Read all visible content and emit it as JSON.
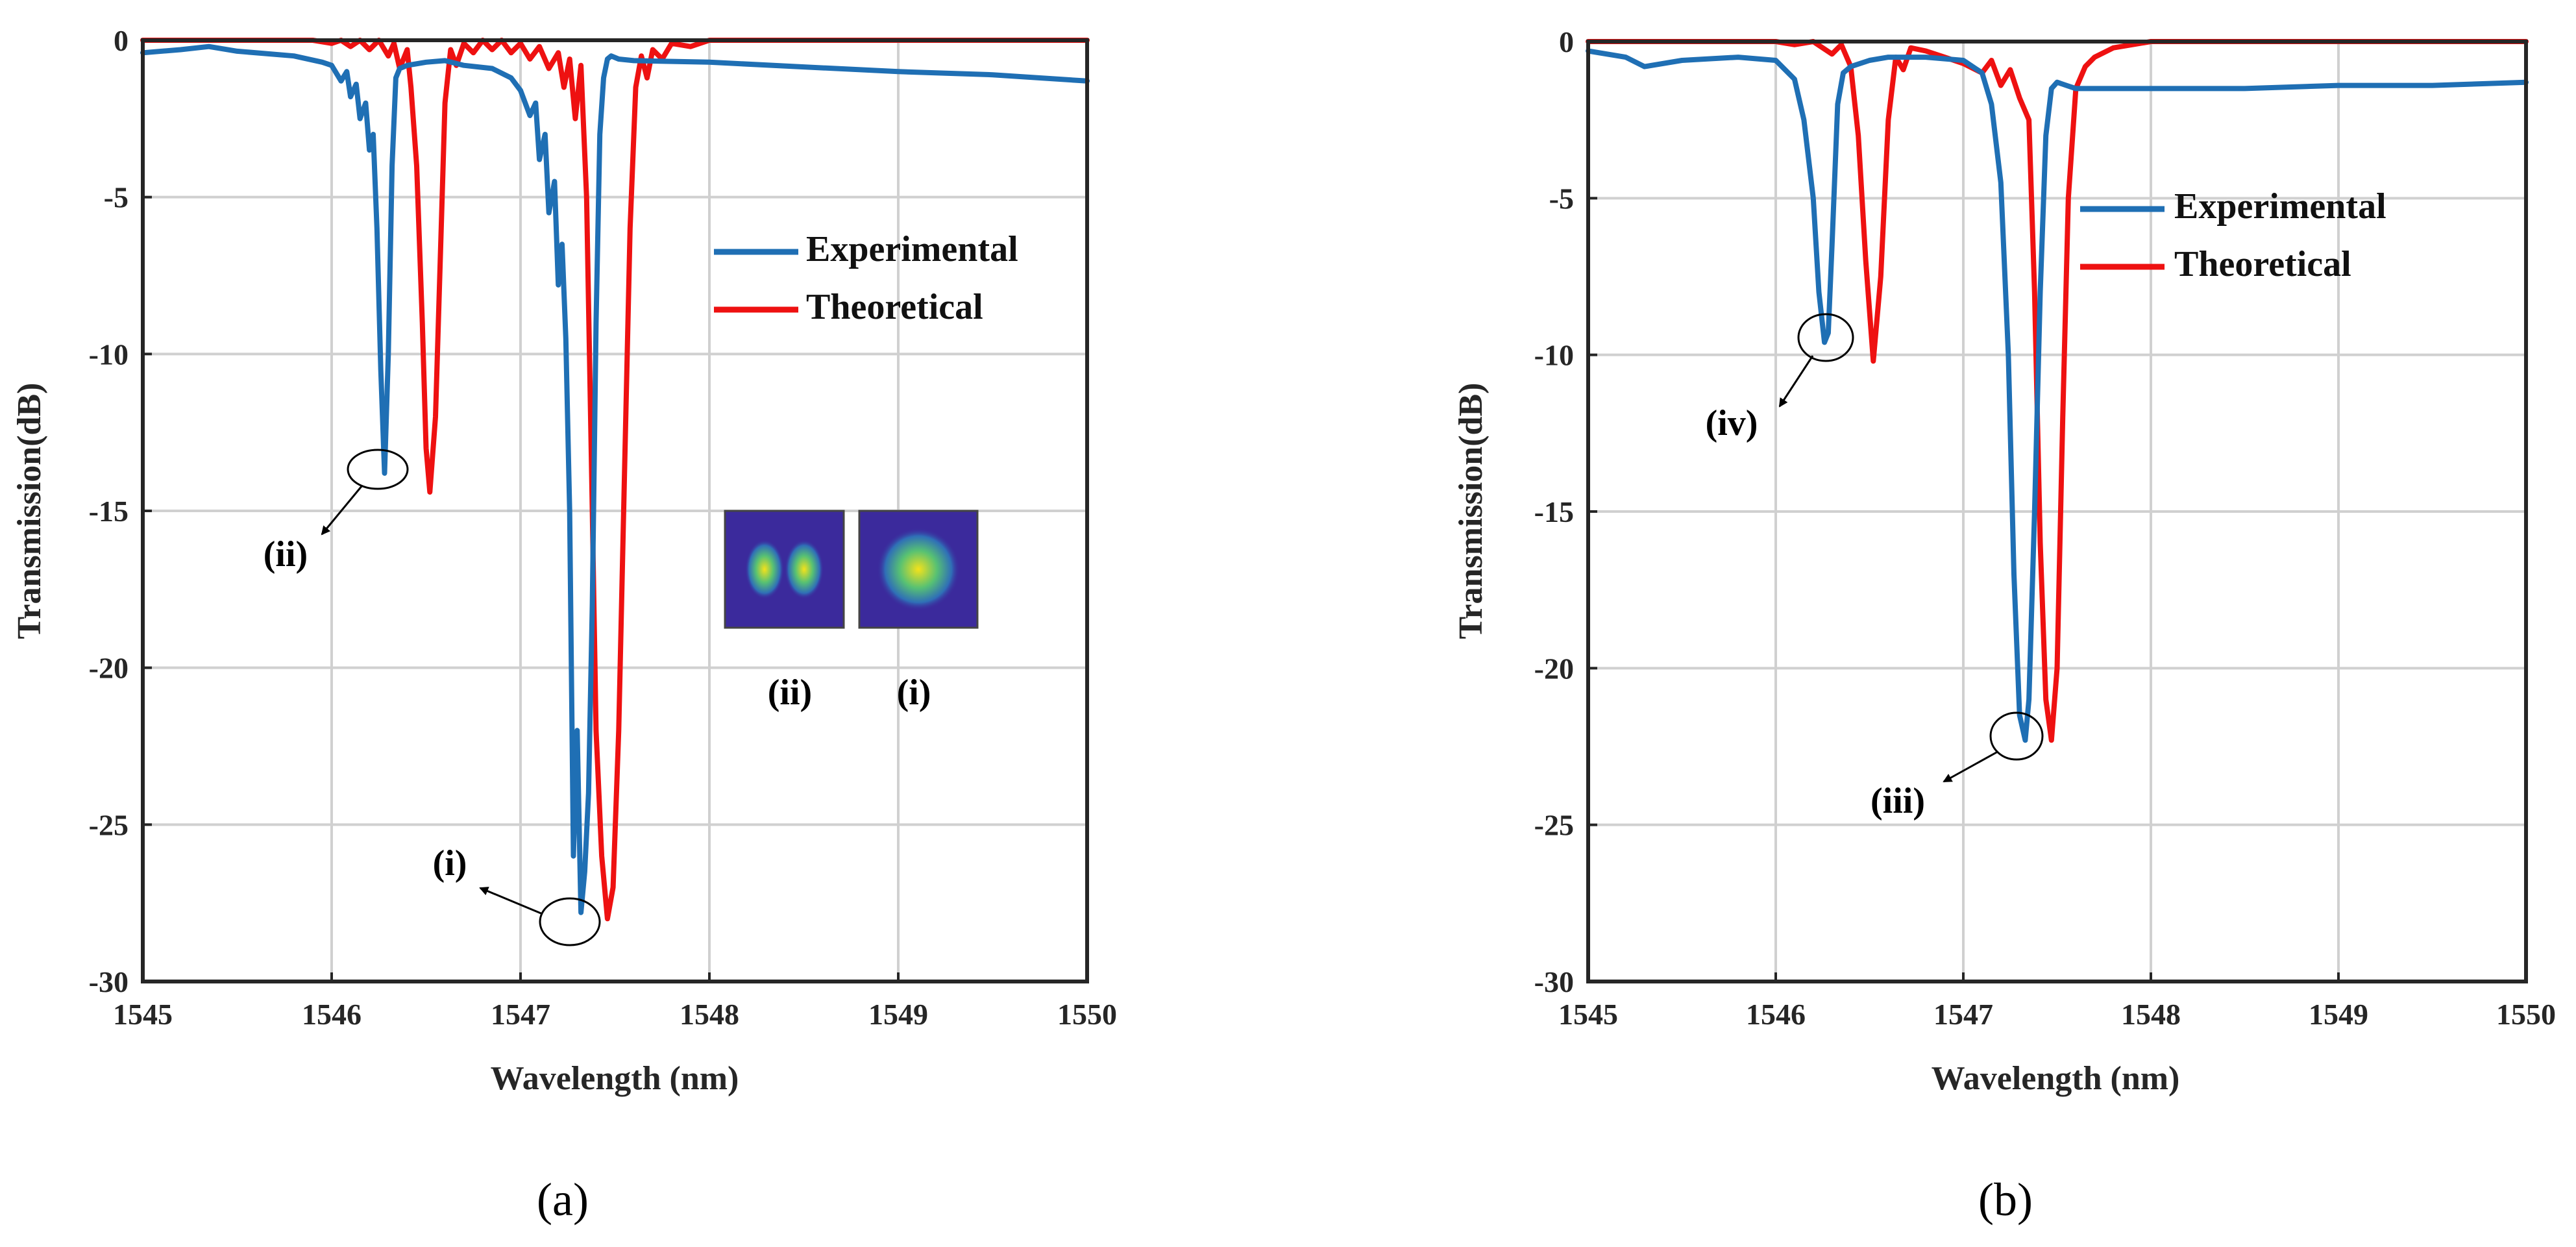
{
  "chart_data": [
    {
      "type": "line",
      "panel_label": "(a)",
      "xlabel": "Wavelength (nm)",
      "ylabel": "Transmission(dB)",
      "xlim": [
        1545,
        1550
      ],
      "ylim": [
        -30,
        0
      ],
      "xticks": [
        "1545",
        "1546",
        "1547",
        "1548",
        "1549",
        "1550"
      ],
      "yticks": [
        "0",
        "-5",
        "-10",
        "-15",
        "-20",
        "-25",
        "-30"
      ],
      "grid": true,
      "legend": {
        "position": "upper-right",
        "entries": [
          "Experimental",
          "Theoretical"
        ]
      },
      "series": [
        {
          "name": "Experimental",
          "color": "#1f6fb4",
          "x": [
            1545.0,
            1545.2,
            1545.35,
            1545.5,
            1545.8,
            1545.95,
            1546.0,
            1546.05,
            1546.08,
            1546.1,
            1546.13,
            1546.15,
            1546.18,
            1546.2,
            1546.22,
            1546.24,
            1546.26,
            1546.28,
            1546.3,
            1546.32,
            1546.34,
            1546.36,
            1546.4,
            1546.5,
            1546.6,
            1546.7,
            1546.85,
            1546.95,
            1547.0,
            1547.05,
            1547.08,
            1547.1,
            1547.13,
            1547.15,
            1547.18,
            1547.2,
            1547.22,
            1547.24,
            1547.26,
            1547.28,
            1547.3,
            1547.32,
            1547.34,
            1547.36,
            1547.38,
            1547.4,
            1547.42,
            1547.44,
            1547.46,
            1547.48,
            1547.52,
            1547.6,
            1548.0,
            1548.5,
            1549.0,
            1549.5,
            1550.0
          ],
          "y": [
            -0.4,
            -0.3,
            -0.2,
            -0.35,
            -0.5,
            -0.7,
            -0.8,
            -1.3,
            -1.0,
            -1.8,
            -1.4,
            -2.5,
            -2.0,
            -3.5,
            -3.0,
            -6.0,
            -10.5,
            -13.8,
            -10.0,
            -4.0,
            -1.2,
            -0.9,
            -0.8,
            -0.7,
            -0.65,
            -0.8,
            -0.9,
            -1.2,
            -1.6,
            -2.4,
            -2.0,
            -3.8,
            -3.0,
            -5.5,
            -4.5,
            -7.8,
            -6.5,
            -9.5,
            -15.0,
            -26.0,
            -22.0,
            -27.8,
            -26.5,
            -24.0,
            -18.0,
            -9.0,
            -3.0,
            -1.2,
            -0.6,
            -0.5,
            -0.6,
            -0.65,
            -0.7,
            -0.85,
            -1.0,
            -1.1,
            -1.3
          ]
        },
        {
          "name": "Theoretical",
          "color": "#ee1111",
          "x": [
            1545.0,
            1545.9,
            1546.0,
            1546.05,
            1546.1,
            1546.15,
            1546.2,
            1546.25,
            1546.3,
            1546.33,
            1546.36,
            1546.4,
            1546.42,
            1546.45,
            1546.48,
            1546.5,
            1546.52,
            1546.55,
            1546.58,
            1546.6,
            1546.63,
            1546.66,
            1546.7,
            1546.75,
            1546.8,
            1546.85,
            1546.9,
            1546.95,
            1547.0,
            1547.05,
            1547.1,
            1547.15,
            1547.2,
            1547.23,
            1547.26,
            1547.29,
            1547.32,
            1547.35,
            1547.38,
            1547.4,
            1547.43,
            1547.46,
            1547.49,
            1547.52,
            1547.55,
            1547.58,
            1547.61,
            1547.64,
            1547.67,
            1547.7,
            1547.75,
            1547.8,
            1547.9,
            1548.0,
            1550.0
          ],
          "y": [
            0,
            0,
            -0.1,
            0,
            -0.2,
            0,
            -0.3,
            0,
            -0.5,
            -0.1,
            -0.9,
            -0.3,
            -1.5,
            -4.0,
            -9.0,
            -13.0,
            -14.4,
            -12.0,
            -6.0,
            -2.0,
            -0.3,
            -0.8,
            -0.1,
            -0.4,
            0,
            -0.3,
            0,
            -0.4,
            -0.1,
            -0.6,
            -0.2,
            -0.9,
            -0.4,
            -1.5,
            -0.6,
            -2.5,
            -0.8,
            -5.0,
            -15.0,
            -22.0,
            -26.0,
            -28.0,
            -27.0,
            -22.0,
            -14.0,
            -6.0,
            -1.5,
            -0.5,
            -1.2,
            -0.3,
            -0.6,
            -0.1,
            -0.2,
            0,
            0
          ]
        }
      ],
      "annotations": [
        "(ii)",
        "(i)"
      ],
      "inset": {
        "labels": [
          "(ii)",
          "(i)"
        ]
      }
    },
    {
      "type": "line",
      "panel_label": "(b)",
      "xlabel": "Wavelength (nm)",
      "ylabel": "Transmission(dB)",
      "xlim": [
        1545,
        1550
      ],
      "ylim": [
        -30,
        0
      ],
      "xticks": [
        "1545",
        "1546",
        "1547",
        "1548",
        "1549",
        "1550"
      ],
      "yticks": [
        "0",
        "-5",
        "-10",
        "-15",
        "-20",
        "-25",
        "-30"
      ],
      "grid": true,
      "legend": {
        "position": "upper-right",
        "entries": [
          "Experimental",
          "Theoretical"
        ]
      },
      "series": [
        {
          "name": "Experimental",
          "color": "#1f6fb4",
          "x": [
            1545.0,
            1545.2,
            1545.3,
            1545.5,
            1545.8,
            1546.0,
            1546.1,
            1546.15,
            1546.2,
            1546.23,
            1546.26,
            1546.28,
            1546.3,
            1546.33,
            1546.36,
            1546.4,
            1546.5,
            1546.6,
            1546.8,
            1547.0,
            1547.1,
            1547.15,
            1547.2,
            1547.24,
            1547.27,
            1547.3,
            1547.33,
            1547.35,
            1547.38,
            1547.41,
            1547.44,
            1547.47,
            1547.5,
            1547.55,
            1547.6,
            1548.0,
            1548.5,
            1549.0,
            1549.5,
            1550.0
          ],
          "y": [
            -0.3,
            -0.5,
            -0.8,
            -0.6,
            -0.5,
            -0.6,
            -1.2,
            -2.5,
            -5.0,
            -8.0,
            -9.6,
            -9.3,
            -6.5,
            -2.0,
            -1.0,
            -0.8,
            -0.6,
            -0.5,
            -0.5,
            -0.6,
            -1.0,
            -2.0,
            -4.5,
            -10.0,
            -17.0,
            -21.5,
            -22.3,
            -21.0,
            -15.0,
            -8.0,
            -3.0,
            -1.5,
            -1.3,
            -1.4,
            -1.5,
            -1.5,
            -1.5,
            -1.4,
            -1.4,
            -1.3
          ]
        },
        {
          "name": "Theoretical",
          "color": "#ee1111",
          "x": [
            1545.0,
            1546.0,
            1546.1,
            1546.2,
            1546.3,
            1546.35,
            1546.4,
            1546.44,
            1546.48,
            1546.52,
            1546.56,
            1546.6,
            1546.64,
            1546.68,
            1546.72,
            1546.8,
            1546.9,
            1547.0,
            1547.1,
            1547.15,
            1547.2,
            1547.25,
            1547.3,
            1547.35,
            1547.38,
            1547.41,
            1547.44,
            1547.47,
            1547.5,
            1547.53,
            1547.56,
            1547.6,
            1547.65,
            1547.7,
            1547.8,
            1548.0,
            1550.0
          ],
          "y": [
            0,
            0,
            -0.1,
            0,
            -0.4,
            -0.1,
            -0.8,
            -3.0,
            -7.0,
            -10.2,
            -7.5,
            -2.5,
            -0.5,
            -0.9,
            -0.2,
            -0.3,
            -0.5,
            -0.7,
            -1.0,
            -0.6,
            -1.4,
            -0.9,
            -1.8,
            -2.5,
            -8.0,
            -16.0,
            -21.0,
            -22.3,
            -20.0,
            -12.0,
            -5.0,
            -1.5,
            -0.8,
            -0.5,
            -0.2,
            0,
            0
          ]
        }
      ],
      "annotations": [
        "(iv)",
        "(iii)"
      ]
    }
  ]
}
